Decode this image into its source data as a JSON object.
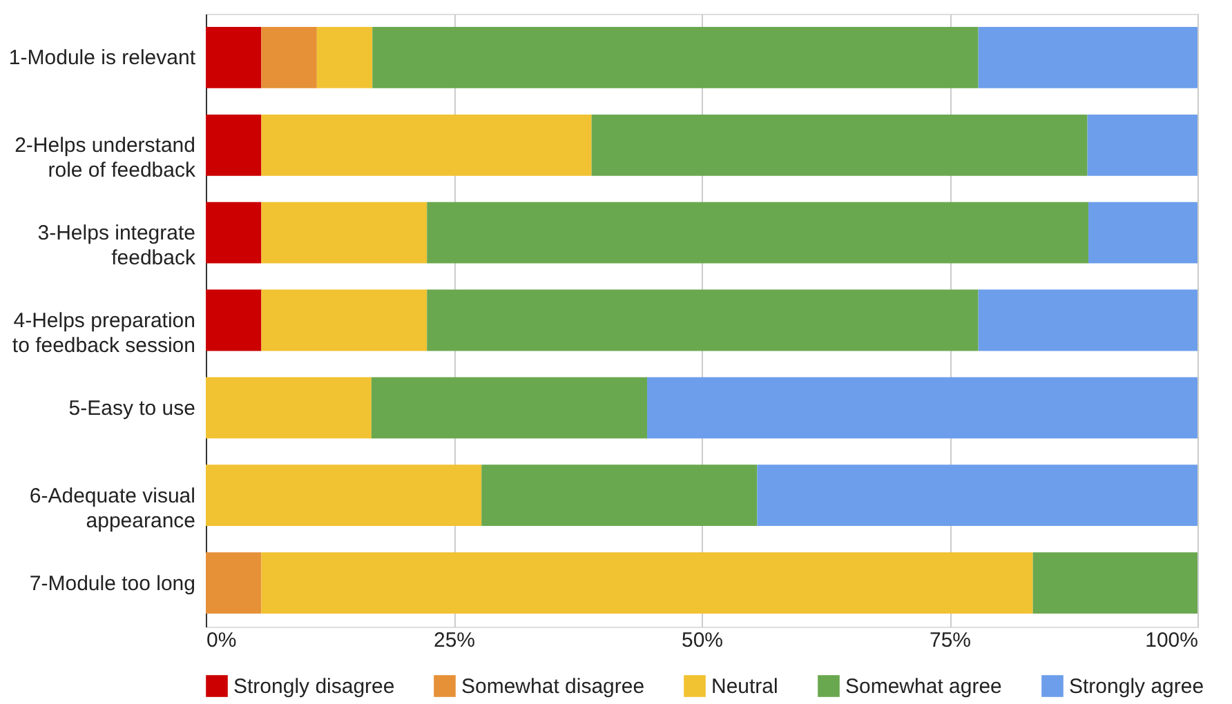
{
  "chart_data": {
    "type": "bar",
    "orientation": "horizontal",
    "stacked": true,
    "categories": [
      "1-Module is relevant",
      "2-Helps understand\nrole of feedback",
      "3-Helps integrate\nfeedback",
      "4-Helps preparation\nto feedback session",
      "5-Easy to use",
      "6-Adequate visual\nappearance",
      "7-Module too long"
    ],
    "series": [
      {
        "name": "Strongly disagree",
        "color": "#cc0000",
        "values": [
          5.6,
          5.6,
          5.6,
          5.6,
          null,
          null,
          null
        ]
      },
      {
        "name": "Somewhat disagree",
        "color": "#e69138",
        "values": [
          5.6,
          null,
          null,
          null,
          null,
          null,
          5.6
        ]
      },
      {
        "name": "Neutral",
        "color": "#f1c232",
        "values": [
          5.6,
          33.3,
          16.7,
          16.7,
          16.7,
          27.8,
          77.8
        ]
      },
      {
        "name": "Somewhat agree",
        "color": "#6aa84f",
        "values": [
          61.1,
          50.0,
          66.7,
          55.6,
          27.8,
          27.8,
          16.6
        ]
      },
      {
        "name": "Strongly agree",
        "color": "#6d9eeb",
        "values": [
          22.1,
          11.1,
          11.0,
          22.1,
          55.5,
          44.4,
          null
        ]
      }
    ],
    "xlim": [
      0,
      100
    ],
    "xticks": [
      {
        "value": 0,
        "label": "0%"
      },
      {
        "value": 25,
        "label": "25%"
      },
      {
        "value": 50,
        "label": "50%"
      },
      {
        "value": 75,
        "label": "75%"
      },
      {
        "value": 100,
        "label": "100%"
      }
    ],
    "grid": "x",
    "legend": "bottom"
  }
}
